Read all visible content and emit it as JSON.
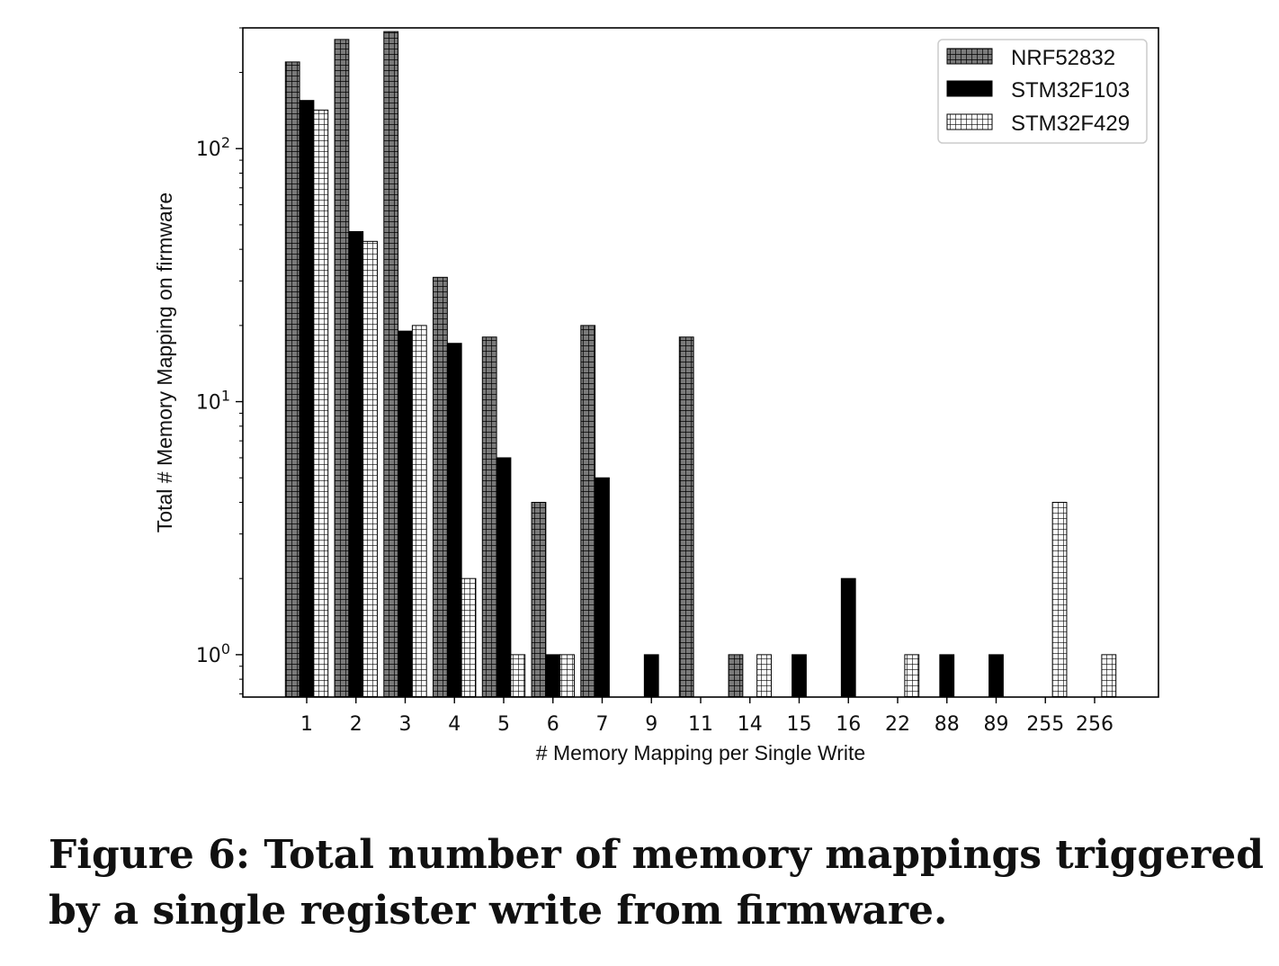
{
  "chart_data": {
    "type": "bar",
    "categories": [
      "1",
      "2",
      "3",
      "4",
      "5",
      "6",
      "7",
      "9",
      "11",
      "14",
      "15",
      "16",
      "22",
      "88",
      "89",
      "255",
      "256"
    ],
    "series": [
      {
        "name": "NRF52832",
        "values": [
          220,
          270,
          290,
          31,
          18,
          4,
          20,
          null,
          18,
          1,
          null,
          null,
          null,
          null,
          null,
          null,
          null
        ]
      },
      {
        "name": "STM32F103",
        "values": [
          155,
          47,
          19,
          17,
          6,
          1,
          5,
          1,
          null,
          null,
          1,
          2,
          null,
          1,
          1,
          null,
          null
        ]
      },
      {
        "name": "STM32F429",
        "values": [
          142,
          43,
          20,
          2,
          1,
          1,
          null,
          null,
          null,
          1,
          null,
          null,
          1,
          null,
          null,
          4,
          1
        ]
      }
    ],
    "xlabel": "# Memory Mapping per Single Write",
    "ylabel": "Total # Memory Mapping on firmware",
    "yscale": "log",
    "ylim": [
      0.68,
      300
    ],
    "yticks": [
      {
        "value": 1,
        "base": "10",
        "exp": "0"
      },
      {
        "value": 10,
        "base": "10",
        "exp": "1"
      },
      {
        "value": 100,
        "base": "10",
        "exp": "2"
      }
    ],
    "legend_position": "top-right",
    "grid": false
  },
  "caption": "Figure 6: Total number of memory mappings triggered by a single register write from firmware.",
  "colors": {
    "nrf_fill": "#7a7a7a",
    "stm103_fill": "#000000",
    "stm429_fill": "#ffffff",
    "edge": "#000000"
  }
}
